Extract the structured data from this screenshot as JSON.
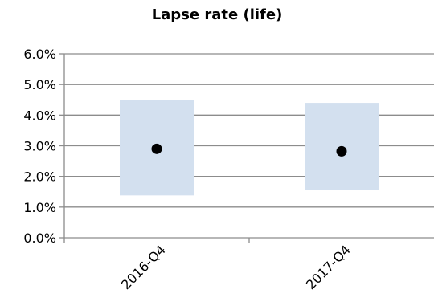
{
  "chart_data": {
    "type": "scatter",
    "title": "Lapse rate (life)",
    "xlabel": "",
    "ylabel": "",
    "categories": [
      "2016-Q4",
      "2017-Q4"
    ],
    "y_ticks": [
      "0.0%",
      "1.0%",
      "2.0%",
      "3.0%",
      "4.0%",
      "5.0%",
      "6.0%"
    ],
    "ylim": [
      0,
      0.06
    ],
    "grid": true,
    "legend": "none",
    "series": [
      {
        "type": "range",
        "low": [
          0.0138,
          0.0155
        ],
        "high": [
          0.045,
          0.044
        ],
        "color": "#d3e0ef"
      },
      {
        "type": "point",
        "values": [
          0.029,
          0.0282
        ],
        "color": "#000000"
      }
    ]
  }
}
